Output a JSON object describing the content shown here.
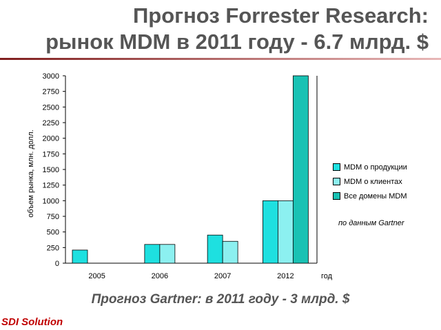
{
  "title_line1": "Прогноз Forrester Research:",
  "title_line2": "рынок MDM в 2011 году - 6.7 млрд. $",
  "source_note": "по данным Gartner",
  "forecast_note": "Прогноз Gartner: в 2011 году - 3 млрд. $",
  "company": "SDI Solution",
  "colors": {
    "title_rule_dark": "#7f1d1d",
    "title_rule_light": "#e8b8b8",
    "accent_red": "#c00000"
  },
  "chart_data": {
    "type": "bar",
    "categories": [
      "2005",
      "2006",
      "2007",
      "2012"
    ],
    "series": [
      {
        "name": "MDM о продукции",
        "values": [
          210,
          300,
          450,
          1000
        ],
        "color": "#1ee0e0"
      },
      {
        "name": "MDM о клиентах",
        "values": [
          null,
          300,
          350,
          1000
        ],
        "color": "#8cf0f0"
      },
      {
        "name": "Все домены MDM",
        "values": [
          null,
          null,
          null,
          3000
        ],
        "color": "#19c2b4"
      }
    ],
    "ylabel": "объем рынка, млн. долл.",
    "xlabel": "год",
    "ylim": [
      0,
      3000
    ],
    "yticks": [
      0,
      250,
      500,
      750,
      1000,
      1250,
      1500,
      1750,
      2000,
      2250,
      2500,
      2750,
      3000
    ],
    "grid": false,
    "legend": "right"
  }
}
